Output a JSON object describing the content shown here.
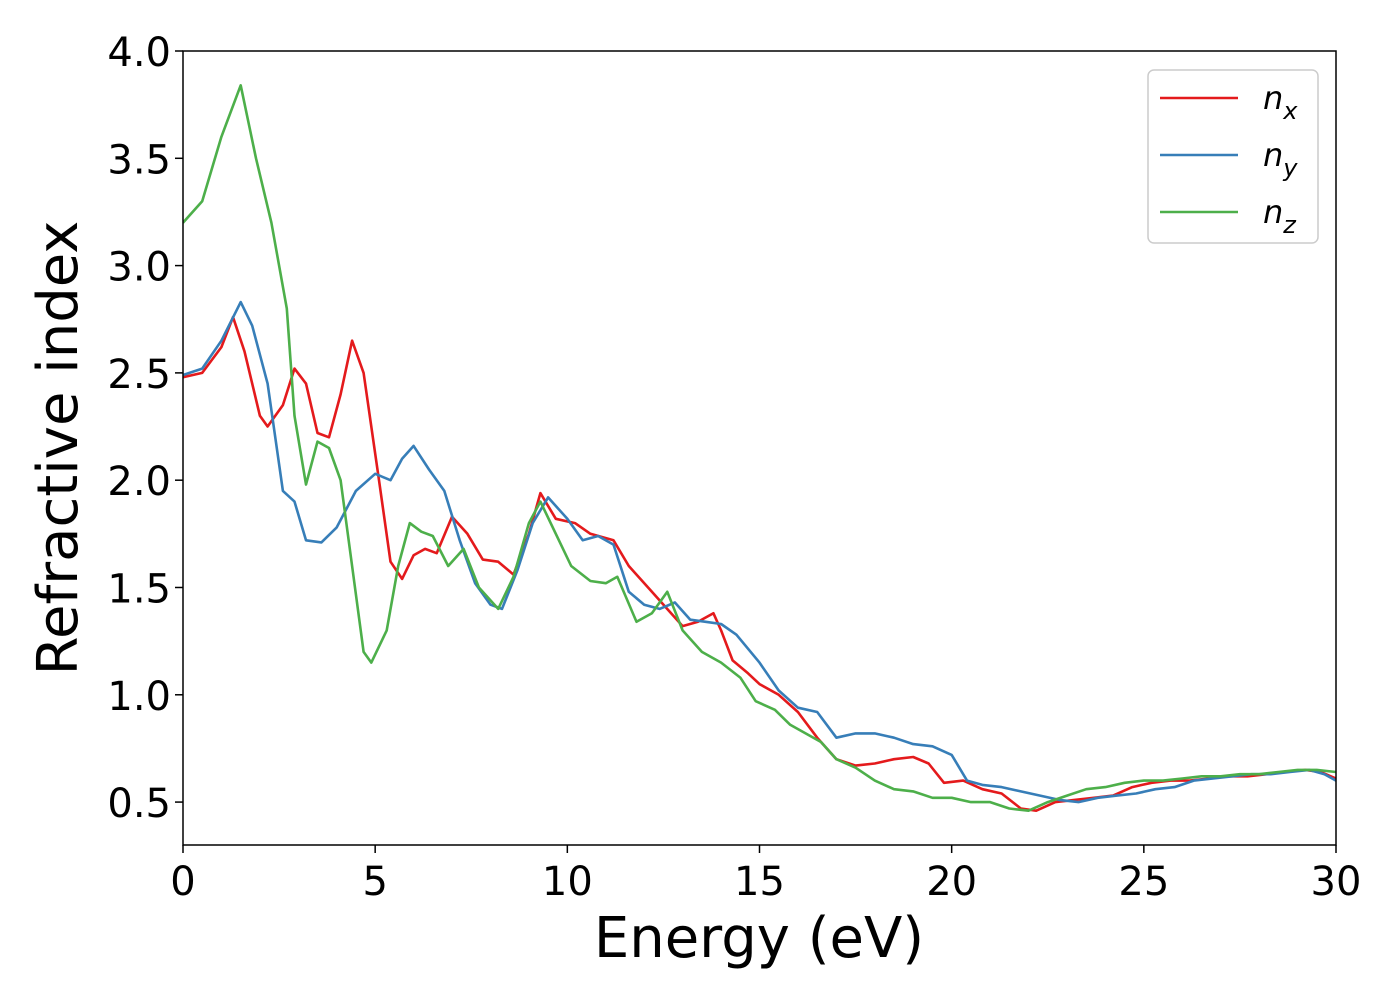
{
  "chart_data": {
    "type": "line",
    "title": "",
    "xlabel": "Energy (eV)",
    "ylabel": "Refractive index",
    "xlim": [
      0,
      30
    ],
    "ylim": [
      0.3,
      4.0
    ],
    "xticks": [
      0,
      5,
      10,
      15,
      20,
      25,
      30
    ],
    "xtick_labels": [
      "0",
      "5",
      "10",
      "15",
      "20",
      "25",
      "30"
    ],
    "yticks": [
      0.5,
      1.0,
      1.5,
      2.0,
      2.5,
      3.0,
      3.5,
      4.0
    ],
    "ytick_labels": [
      "0.5",
      "1.0",
      "1.5",
      "2.0",
      "2.5",
      "3.0",
      "3.5",
      "4.0"
    ],
    "grid": false,
    "legend_position": "top-right",
    "series": [
      {
        "name": "n_x",
        "label_base": "n",
        "label_sub": "x",
        "color": "#e41a1c",
        "points": [
          [
            0,
            2.48
          ],
          [
            0.5,
            2.5
          ],
          [
            1.0,
            2.62
          ],
          [
            1.3,
            2.76
          ],
          [
            1.6,
            2.6
          ],
          [
            2.0,
            2.3
          ],
          [
            2.2,
            2.25
          ],
          [
            2.6,
            2.35
          ],
          [
            2.9,
            2.52
          ],
          [
            3.2,
            2.45
          ],
          [
            3.5,
            2.22
          ],
          [
            3.8,
            2.2
          ],
          [
            4.1,
            2.4
          ],
          [
            4.4,
            2.65
          ],
          [
            4.7,
            2.5
          ],
          [
            5.1,
            2.0
          ],
          [
            5.4,
            1.62
          ],
          [
            5.7,
            1.54
          ],
          [
            6.0,
            1.65
          ],
          [
            6.3,
            1.68
          ],
          [
            6.6,
            1.66
          ],
          [
            7.0,
            1.83
          ],
          [
            7.4,
            1.75
          ],
          [
            7.8,
            1.63
          ],
          [
            8.2,
            1.62
          ],
          [
            8.6,
            1.56
          ],
          [
            9.0,
            1.75
          ],
          [
            9.3,
            1.94
          ],
          [
            9.7,
            1.82
          ],
          [
            10.2,
            1.8
          ],
          [
            10.6,
            1.75
          ],
          [
            11.2,
            1.72
          ],
          [
            11.6,
            1.6
          ],
          [
            12.2,
            1.48
          ],
          [
            12.7,
            1.38
          ],
          [
            13.0,
            1.32
          ],
          [
            13.4,
            1.34
          ],
          [
            13.8,
            1.38
          ],
          [
            14.0,
            1.3
          ],
          [
            14.3,
            1.16
          ],
          [
            14.7,
            1.1
          ],
          [
            15.0,
            1.05
          ],
          [
            15.5,
            1.0
          ],
          [
            16.0,
            0.92
          ],
          [
            16.5,
            0.8
          ],
          [
            17.0,
            0.7
          ],
          [
            17.5,
            0.67
          ],
          [
            18.0,
            0.68
          ],
          [
            18.5,
            0.7
          ],
          [
            19.0,
            0.71
          ],
          [
            19.4,
            0.68
          ],
          [
            19.8,
            0.59
          ],
          [
            20.3,
            0.6
          ],
          [
            20.8,
            0.56
          ],
          [
            21.3,
            0.54
          ],
          [
            21.8,
            0.47
          ],
          [
            22.2,
            0.46
          ],
          [
            22.7,
            0.5
          ],
          [
            23.2,
            0.51
          ],
          [
            23.7,
            0.52
          ],
          [
            24.2,
            0.53
          ],
          [
            24.7,
            0.57
          ],
          [
            25.2,
            0.59
          ],
          [
            25.7,
            0.6
          ],
          [
            26.2,
            0.6
          ],
          [
            26.7,
            0.61
          ],
          [
            27.2,
            0.62
          ],
          [
            27.7,
            0.62
          ],
          [
            28.2,
            0.63
          ],
          [
            28.7,
            0.64
          ],
          [
            29.2,
            0.65
          ],
          [
            29.6,
            0.64
          ],
          [
            30,
            0.61
          ]
        ]
      },
      {
        "name": "n_y",
        "label_base": "n",
        "label_sub": "y",
        "color": "#377eb8",
        "points": [
          [
            0,
            2.49
          ],
          [
            0.5,
            2.52
          ],
          [
            1.0,
            2.65
          ],
          [
            1.5,
            2.83
          ],
          [
            1.8,
            2.72
          ],
          [
            2.2,
            2.45
          ],
          [
            2.6,
            1.95
          ],
          [
            2.9,
            1.9
          ],
          [
            3.2,
            1.72
          ],
          [
            3.6,
            1.71
          ],
          [
            4.0,
            1.78
          ],
          [
            4.5,
            1.95
          ],
          [
            5.0,
            2.03
          ],
          [
            5.4,
            2.0
          ],
          [
            5.7,
            2.1
          ],
          [
            6.0,
            2.16
          ],
          [
            6.4,
            2.05
          ],
          [
            6.8,
            1.95
          ],
          [
            7.2,
            1.72
          ],
          [
            7.6,
            1.52
          ],
          [
            8.0,
            1.42
          ],
          [
            8.3,
            1.4
          ],
          [
            8.7,
            1.58
          ],
          [
            9.1,
            1.8
          ],
          [
            9.5,
            1.92
          ],
          [
            10.0,
            1.82
          ],
          [
            10.4,
            1.72
          ],
          [
            10.8,
            1.74
          ],
          [
            11.2,
            1.7
          ],
          [
            11.6,
            1.48
          ],
          [
            12.0,
            1.42
          ],
          [
            12.4,
            1.4
          ],
          [
            12.8,
            1.43
          ],
          [
            13.2,
            1.35
          ],
          [
            13.6,
            1.34
          ],
          [
            14.0,
            1.33
          ],
          [
            14.4,
            1.28
          ],
          [
            15.0,
            1.15
          ],
          [
            15.5,
            1.02
          ],
          [
            16.0,
            0.94
          ],
          [
            16.5,
            0.92
          ],
          [
            17.0,
            0.8
          ],
          [
            17.5,
            0.82
          ],
          [
            18.0,
            0.82
          ],
          [
            18.5,
            0.8
          ],
          [
            19.0,
            0.77
          ],
          [
            19.5,
            0.76
          ],
          [
            20.0,
            0.72
          ],
          [
            20.4,
            0.6
          ],
          [
            20.8,
            0.58
          ],
          [
            21.3,
            0.57
          ],
          [
            21.8,
            0.55
          ],
          [
            22.3,
            0.53
          ],
          [
            22.8,
            0.51
          ],
          [
            23.3,
            0.5
          ],
          [
            23.8,
            0.52
          ],
          [
            24.3,
            0.53
          ],
          [
            24.8,
            0.54
          ],
          [
            25.3,
            0.56
          ],
          [
            25.8,
            0.57
          ],
          [
            26.3,
            0.6
          ],
          [
            26.8,
            0.61
          ],
          [
            27.3,
            0.62
          ],
          [
            27.8,
            0.63
          ],
          [
            28.3,
            0.63
          ],
          [
            28.8,
            0.64
          ],
          [
            29.3,
            0.65
          ],
          [
            29.7,
            0.63
          ],
          [
            30,
            0.6
          ]
        ]
      },
      {
        "name": "n_z",
        "label_base": "n",
        "label_sub": "z",
        "color": "#4daf4a",
        "points": [
          [
            0,
            3.2
          ],
          [
            0.5,
            3.3
          ],
          [
            1.0,
            3.6
          ],
          [
            1.5,
            3.84
          ],
          [
            1.9,
            3.5
          ],
          [
            2.3,
            3.2
          ],
          [
            2.7,
            2.8
          ],
          [
            2.9,
            2.3
          ],
          [
            3.2,
            1.98
          ],
          [
            3.5,
            2.18
          ],
          [
            3.8,
            2.15
          ],
          [
            4.1,
            2.0
          ],
          [
            4.4,
            1.6
          ],
          [
            4.7,
            1.2
          ],
          [
            4.9,
            1.15
          ],
          [
            5.3,
            1.3
          ],
          [
            5.6,
            1.6
          ],
          [
            5.9,
            1.8
          ],
          [
            6.2,
            1.76
          ],
          [
            6.5,
            1.74
          ],
          [
            6.9,
            1.6
          ],
          [
            7.3,
            1.68
          ],
          [
            7.7,
            1.5
          ],
          [
            8.2,
            1.4
          ],
          [
            8.6,
            1.55
          ],
          [
            9.0,
            1.8
          ],
          [
            9.3,
            1.9
          ],
          [
            9.7,
            1.75
          ],
          [
            10.1,
            1.6
          ],
          [
            10.6,
            1.53
          ],
          [
            11.0,
            1.52
          ],
          [
            11.3,
            1.55
          ],
          [
            11.8,
            1.34
          ],
          [
            12.2,
            1.38
          ],
          [
            12.6,
            1.48
          ],
          [
            13.0,
            1.3
          ],
          [
            13.5,
            1.2
          ],
          [
            14.0,
            1.15
          ],
          [
            14.5,
            1.08
          ],
          [
            14.9,
            0.97
          ],
          [
            15.4,
            0.93
          ],
          [
            15.8,
            0.86
          ],
          [
            16.2,
            0.82
          ],
          [
            16.6,
            0.78
          ],
          [
            17.0,
            0.7
          ],
          [
            17.5,
            0.66
          ],
          [
            18.0,
            0.6
          ],
          [
            18.5,
            0.56
          ],
          [
            19.0,
            0.55
          ],
          [
            19.5,
            0.52
          ],
          [
            20.0,
            0.52
          ],
          [
            20.5,
            0.5
          ],
          [
            21.0,
            0.5
          ],
          [
            21.5,
            0.47
          ],
          [
            22.0,
            0.46
          ],
          [
            22.5,
            0.5
          ],
          [
            23.0,
            0.53
          ],
          [
            23.5,
            0.56
          ],
          [
            24.0,
            0.57
          ],
          [
            24.5,
            0.59
          ],
          [
            25.0,
            0.6
          ],
          [
            25.5,
            0.6
          ],
          [
            26.0,
            0.61
          ],
          [
            26.5,
            0.62
          ],
          [
            27.0,
            0.62
          ],
          [
            27.5,
            0.63
          ],
          [
            28.0,
            0.63
          ],
          [
            28.5,
            0.64
          ],
          [
            29.0,
            0.65
          ],
          [
            29.5,
            0.65
          ],
          [
            30,
            0.64
          ]
        ]
      }
    ]
  }
}
